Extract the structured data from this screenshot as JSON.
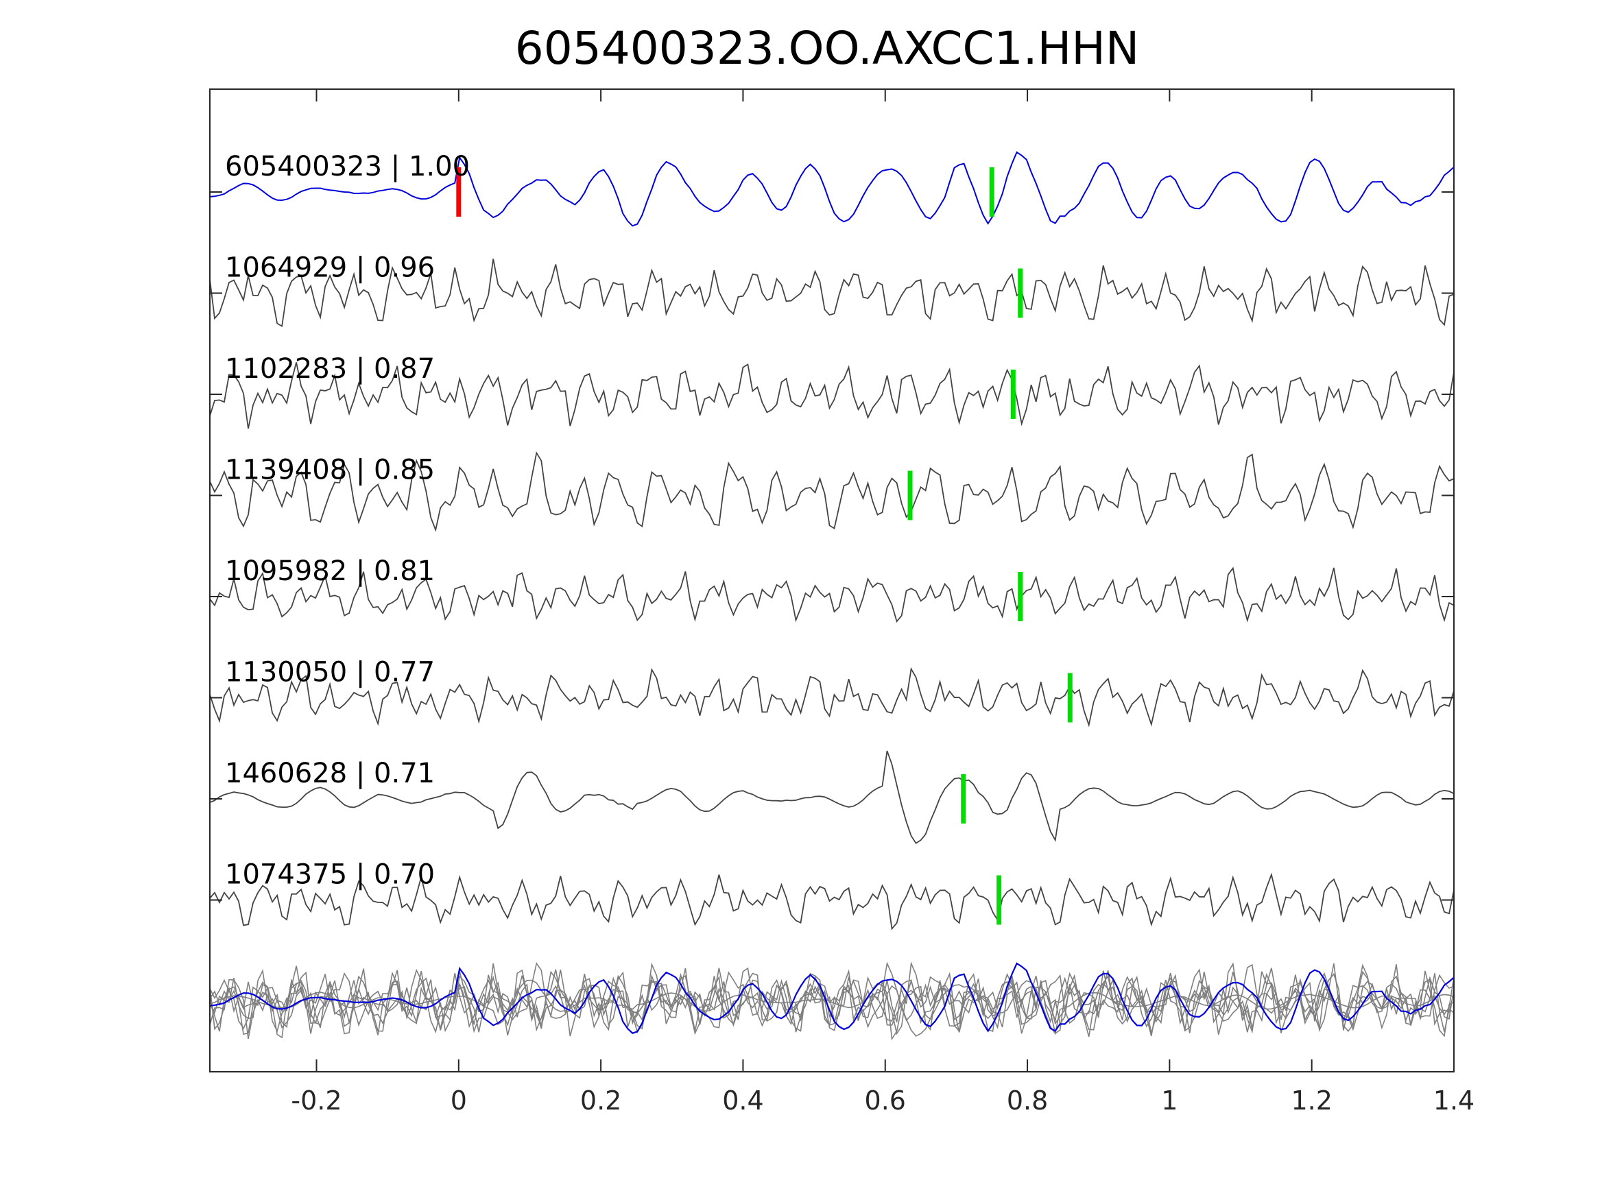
{
  "chart_data": {
    "type": "line",
    "title": "605400323.OO.AXCC1.HHN",
    "xlabel": "",
    "ylabel": "",
    "xlim": [
      -0.35,
      1.4
    ],
    "xticks": [
      -0.2,
      0,
      0.2,
      0.4,
      0.6,
      0.8,
      1,
      1.2,
      1.4
    ],
    "xtick_labels": [
      "-0.2",
      "0",
      "0.2",
      "0.4",
      "0.6",
      "0.8",
      "1",
      "1.2",
      "1.4"
    ],
    "grid": false,
    "reference_pick_time": 0.0,
    "colors": {
      "template": "#0000dd",
      "traces": "#444444",
      "stack": "#7f7f7f",
      "reference_pick": "#ff0000",
      "matched_pick": "#00dd00"
    },
    "series": [
      {
        "id": "605400323",
        "cc": "1.00",
        "label": "605400323 | 1.00",
        "pick_time": 0.75,
        "type": "template",
        "seed": 11,
        "style": "oscill",
        "event": 0.76
      },
      {
        "id": "1064929",
        "cc": "0.96",
        "label": "1064929 | 0.96",
        "pick_time": 0.79,
        "seed": 23,
        "style": "noisy"
      },
      {
        "id": "1102283",
        "cc": "0.87",
        "label": "1102283 | 0.87",
        "pick_time": 0.78,
        "seed": 37,
        "style": "noisy"
      },
      {
        "id": "1139408",
        "cc": "0.85",
        "label": "1139408 | 0.85",
        "pick_time": 0.635,
        "seed": 41,
        "style": "strong"
      },
      {
        "id": "1095982",
        "cc": "0.81",
        "label": "1095982 | 0.81",
        "pick_time": 0.79,
        "seed": 53,
        "style": "small"
      },
      {
        "id": "1130050",
        "cc": "0.77",
        "label": "1130050 | 0.77",
        "pick_time": 0.86,
        "seed": 67,
        "style": "small"
      },
      {
        "id": "1460628",
        "cc": "0.71",
        "label": "1460628 | 0.71",
        "pick_time": 0.71,
        "seed": 79,
        "style": "smooth",
        "event": 0.72
      },
      {
        "id": "1074375",
        "cc": "0.70",
        "label": "1074375 | 0.70",
        "pick_time": 0.76,
        "seed": 97,
        "style": "small"
      }
    ]
  }
}
